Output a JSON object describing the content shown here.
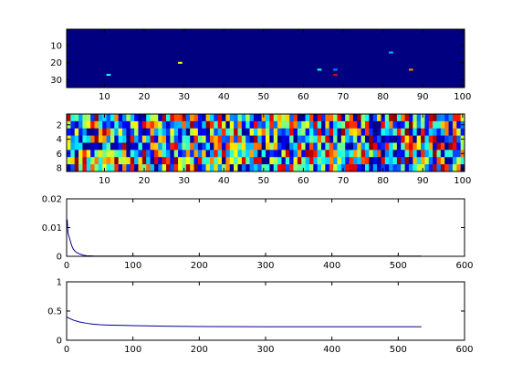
{
  "chart_data": [
    {
      "type": "heatmap",
      "title": "",
      "xlabel": "",
      "ylabel": "",
      "xlim": [
        0.5,
        100.5
      ],
      "ylim": [
        0.5,
        34.5
      ],
      "rows": 34,
      "cols": 100,
      "y_reversed": true,
      "colormap": "jet",
      "background_value": 0,
      "xticks": [
        10,
        20,
        30,
        40,
        50,
        60,
        70,
        80,
        90,
        100
      ],
      "yticks": [
        10,
        20,
        30
      ],
      "hot_pixels": [
        {
          "row": 27,
          "col": 11,
          "value": 0.4
        },
        {
          "row": 20,
          "col": 29,
          "value": 0.65
        },
        {
          "row": 24,
          "col": 64,
          "value": 0.4
        },
        {
          "row": 24,
          "col": 68,
          "value": 0.25
        },
        {
          "row": 27,
          "col": 68,
          "value": 0.9
        },
        {
          "row": 14,
          "col": 82,
          "value": 0.3
        },
        {
          "row": 24,
          "col": 87,
          "value": 0.75
        }
      ]
    },
    {
      "type": "heatmap",
      "title": "",
      "xlabel": "",
      "ylabel": "",
      "xlim": [
        0.5,
        100.5
      ],
      "ylim": [
        0.5,
        8.5
      ],
      "rows": 8,
      "cols": 100,
      "y_reversed": true,
      "colormap": "jet",
      "note_values": "pseudo-random cell intensities in [0,1]",
      "xticks": [
        10,
        20,
        30,
        40,
        50,
        60,
        70,
        80,
        90,
        100
      ],
      "yticks": [
        2,
        4,
        6,
        8
      ]
    },
    {
      "type": "line",
      "title": "",
      "xlabel": "",
      "ylabel": "",
      "xlim": [
        0,
        600
      ],
      "ylim": [
        0,
        0.02
      ],
      "xticks": [
        0,
        100,
        200,
        300,
        400,
        500,
        600
      ],
      "yticks": [
        0,
        0.01,
        0.02
      ],
      "color": "#00008f",
      "series": [
        {
          "x": [
            0,
            1,
            2,
            4,
            6,
            8,
            10,
            13,
            16,
            20,
            25,
            30,
            40,
            60,
            100,
            200,
            300,
            400,
            535
          ],
          "y": [
            0.013,
            0.0125,
            0.0082,
            0.0066,
            0.005,
            0.0035,
            0.0025,
            0.0017,
            0.0012,
            0.0008,
            0.0004,
            0.0002,
            0.00012,
            0.0001,
            0.0001,
            0.0001,
            0.0001,
            0.0001,
            0.0001
          ]
        }
      ]
    },
    {
      "type": "line",
      "title": "",
      "xlabel": "",
      "ylabel": "",
      "xlim": [
        0,
        600
      ],
      "ylim": [
        0,
        1
      ],
      "xticks": [
        0,
        100,
        200,
        300,
        400,
        500,
        600
      ],
      "yticks": [
        0,
        0.5,
        1
      ],
      "color": "#00008f",
      "series": [
        {
          "x": [
            0,
            5,
            10,
            20,
            30,
            40,
            50,
            60,
            80,
            100,
            150,
            200,
            300,
            400,
            535
          ],
          "y": [
            0.4,
            0.37,
            0.345,
            0.31,
            0.29,
            0.275,
            0.265,
            0.26,
            0.255,
            0.25,
            0.24,
            0.235,
            0.23,
            0.23,
            0.23
          ]
        }
      ]
    }
  ]
}
